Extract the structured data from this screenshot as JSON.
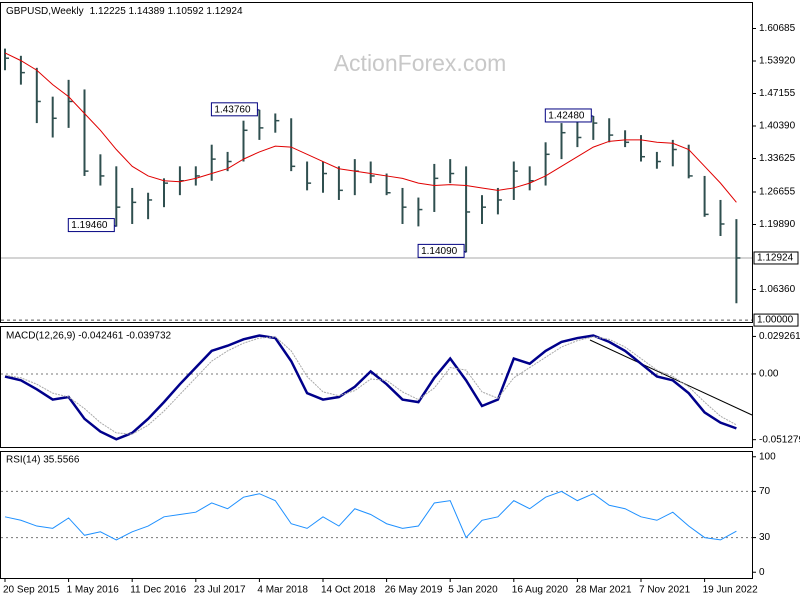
{
  "chart_data": [
    {
      "type": "ohlc",
      "title": "GBPUSD,Weekly",
      "subtitle": "1.12225 1.14389 1.10592 1.12924",
      "watermark": "ActionForex.com",
      "categories": [
        "20 Sep 2015",
        null,
        null,
        null,
        "1 May 2016",
        null,
        null,
        null,
        "11 Dec 2016",
        null,
        null,
        null,
        "23 Jul 2017",
        null,
        null,
        null,
        "4 Mar 2018",
        null,
        null,
        null,
        "14 Oct 2018",
        null,
        null,
        null,
        "26 May 2019",
        null,
        null,
        null,
        "5 Jan 2020",
        null,
        null,
        null,
        "16 Aug 2020",
        null,
        null,
        null,
        "28 Mar 2021",
        null,
        null,
        null,
        "7 Nov 2021",
        null,
        null,
        null,
        "19 Jun 2022",
        null,
        null
      ],
      "high": [
        1.565,
        1.55,
        1.525,
        1.465,
        1.5,
        1.48,
        1.345,
        1.32,
        1.275,
        1.265,
        1.295,
        1.32,
        1.32,
        1.365,
        1.35,
        1.415,
        1.4376,
        1.43,
        1.42,
        1.33,
        1.33,
        1.32,
        1.335,
        1.33,
        1.305,
        1.275,
        1.255,
        1.325,
        1.335,
        1.32,
        1.26,
        1.275,
        1.33,
        1.32,
        1.37,
        1.41,
        1.415,
        1.4248,
        1.42,
        1.395,
        1.385,
        1.35,
        1.375,
        1.365,
        1.3,
        1.25,
        1.21
      ],
      "low": [
        1.52,
        1.49,
        1.41,
        1.38,
        1.4,
        1.3,
        1.28,
        1.1946,
        1.2,
        1.21,
        1.235,
        1.26,
        1.28,
        1.29,
        1.31,
        1.33,
        1.375,
        1.39,
        1.31,
        1.27,
        1.265,
        1.25,
        1.26,
        1.285,
        1.26,
        1.2,
        1.195,
        1.225,
        1.285,
        1.1409,
        1.2,
        1.22,
        1.25,
        1.27,
        1.28,
        1.335,
        1.36,
        1.375,
        1.37,
        1.36,
        1.33,
        1.315,
        1.32,
        1.295,
        1.215,
        1.175,
        1.035
      ],
      "close": [
        1.545,
        1.515,
        1.455,
        1.42,
        1.455,
        1.31,
        1.3,
        1.235,
        1.245,
        1.25,
        1.285,
        1.29,
        1.3,
        1.335,
        1.33,
        1.395,
        1.4,
        1.415,
        1.32,
        1.285,
        1.305,
        1.27,
        1.31,
        1.3,
        1.265,
        1.235,
        1.23,
        1.295,
        1.305,
        1.225,
        1.235,
        1.25,
        1.31,
        1.29,
        1.345,
        1.39,
        1.38,
        1.41,
        1.385,
        1.37,
        1.34,
        1.33,
        1.355,
        1.3,
        1.22,
        1.2,
        1.12924
      ],
      "color": "#2f4f4f",
      "ma_values": [
        1.556,
        1.54,
        1.52,
        1.49,
        1.465,
        1.43,
        1.395,
        1.355,
        1.32,
        1.3,
        1.29,
        1.288,
        1.295,
        1.305,
        1.315,
        1.335,
        1.35,
        1.362,
        1.36,
        1.345,
        1.33,
        1.315,
        1.31,
        1.305,
        1.3,
        1.295,
        1.285,
        1.28,
        1.282,
        1.28,
        1.275,
        1.27,
        1.275,
        1.285,
        1.3,
        1.32,
        1.34,
        1.36,
        1.372,
        1.375,
        1.375,
        1.37,
        1.368,
        1.355,
        1.32,
        1.285,
        1.245
      ],
      "ma_color": "#e00000",
      "annotations": [
        {
          "value": 1.1946,
          "label": "1.19460"
        },
        {
          "value": 1.4376,
          "label": "1.43760"
        },
        {
          "value": 1.1409,
          "label": "1.14090"
        },
        {
          "value": 1.4248,
          "label": "1.42480"
        }
      ],
      "last_price": 1.12924,
      "hlines": [
        {
          "value": 1,
          "label": "1.00000"
        }
      ],
      "ylim": [
        0.996,
        1.662
      ],
      "yticks": [
        1.60685,
        {
          "value": 1.5392,
          "label": "1.53920"
        },
        1.47155,
        {
          "value": 1.4039,
          "label": "1.40390"
        },
        1.33625,
        1.26655,
        {
          "value": 1.1989,
          "label": "1.19890"
        },
        {
          "value": 1.0636,
          "label": "1.06360"
        }
      ]
    },
    {
      "type": "line",
      "title": "MACD(12,26,9) -0.042461 -0.039732",
      "series": [
        {
          "color": "#00008b",
          "values": [
            -0.002,
            -0.005,
            -0.012,
            -0.02,
            -0.018,
            -0.035,
            -0.045,
            -0.051,
            -0.046,
            -0.035,
            -0.022,
            -0.008,
            0.005,
            0.018,
            0.022,
            0.027,
            0.03,
            0.028,
            0.01,
            -0.015,
            -0.02,
            -0.018,
            -0.01,
            0.002,
            -0.008,
            -0.02,
            -0.022,
            -0.003,
            0.012,
            -0.005,
            -0.025,
            -0.02,
            0.012,
            0.008,
            0.018,
            0.025,
            0.028,
            0.03,
            0.025,
            0.018,
            0.008,
            -0.002,
            -0.005,
            -0.015,
            -0.03,
            -0.038,
            -0.042461
          ]
        },
        {
          "color": "#a9a9a9",
          "values": [
            -0.001,
            -0.003,
            -0.008,
            -0.015,
            -0.018,
            -0.027,
            -0.038,
            -0.046,
            -0.047,
            -0.04,
            -0.029,
            -0.016,
            -0.003,
            0.01,
            0.018,
            0.024,
            0.028,
            0.029,
            0.018,
            -0.002,
            -0.014,
            -0.017,
            -0.013,
            -0.004,
            -0.005,
            -0.014,
            -0.02,
            -0.011,
            0.005,
            0.003,
            -0.014,
            -0.019,
            -0.003,
            0.005,
            0.013,
            0.021,
            0.026,
            0.029,
            0.027,
            0.021,
            0.012,
            0.003,
            -0.002,
            -0.01,
            -0.022,
            -0.033,
            -0.039732
          ]
        }
      ],
      "levels": [
        0
      ],
      "ylim": [
        -0.057,
        0.0374
      ],
      "yticks": [
        0.029261,
        {
          "value": 0,
          "label": "0.00"
        },
        -0.051279
      ]
    },
    {
      "type": "line",
      "title": "RSI(14) 35.5566",
      "series": [
        {
          "color": "#1e90ff",
          "values": [
            48,
            45,
            40,
            38,
            47,
            32,
            35,
            28,
            35,
            40,
            48,
            50,
            52,
            60,
            55,
            65,
            68,
            62,
            42,
            38,
            48,
            40,
            55,
            50,
            42,
            38,
            40,
            60,
            62,
            30,
            45,
            48,
            62,
            55,
            65,
            70,
            62,
            68,
            58,
            55,
            48,
            45,
            52,
            40,
            30,
            28,
            35.5566
          ]
        }
      ],
      "levels": [
        70,
        30
      ],
      "ylim": [
        -5,
        105
      ],
      "yticks": [
        100,
        70,
        30,
        0
      ]
    }
  ]
}
